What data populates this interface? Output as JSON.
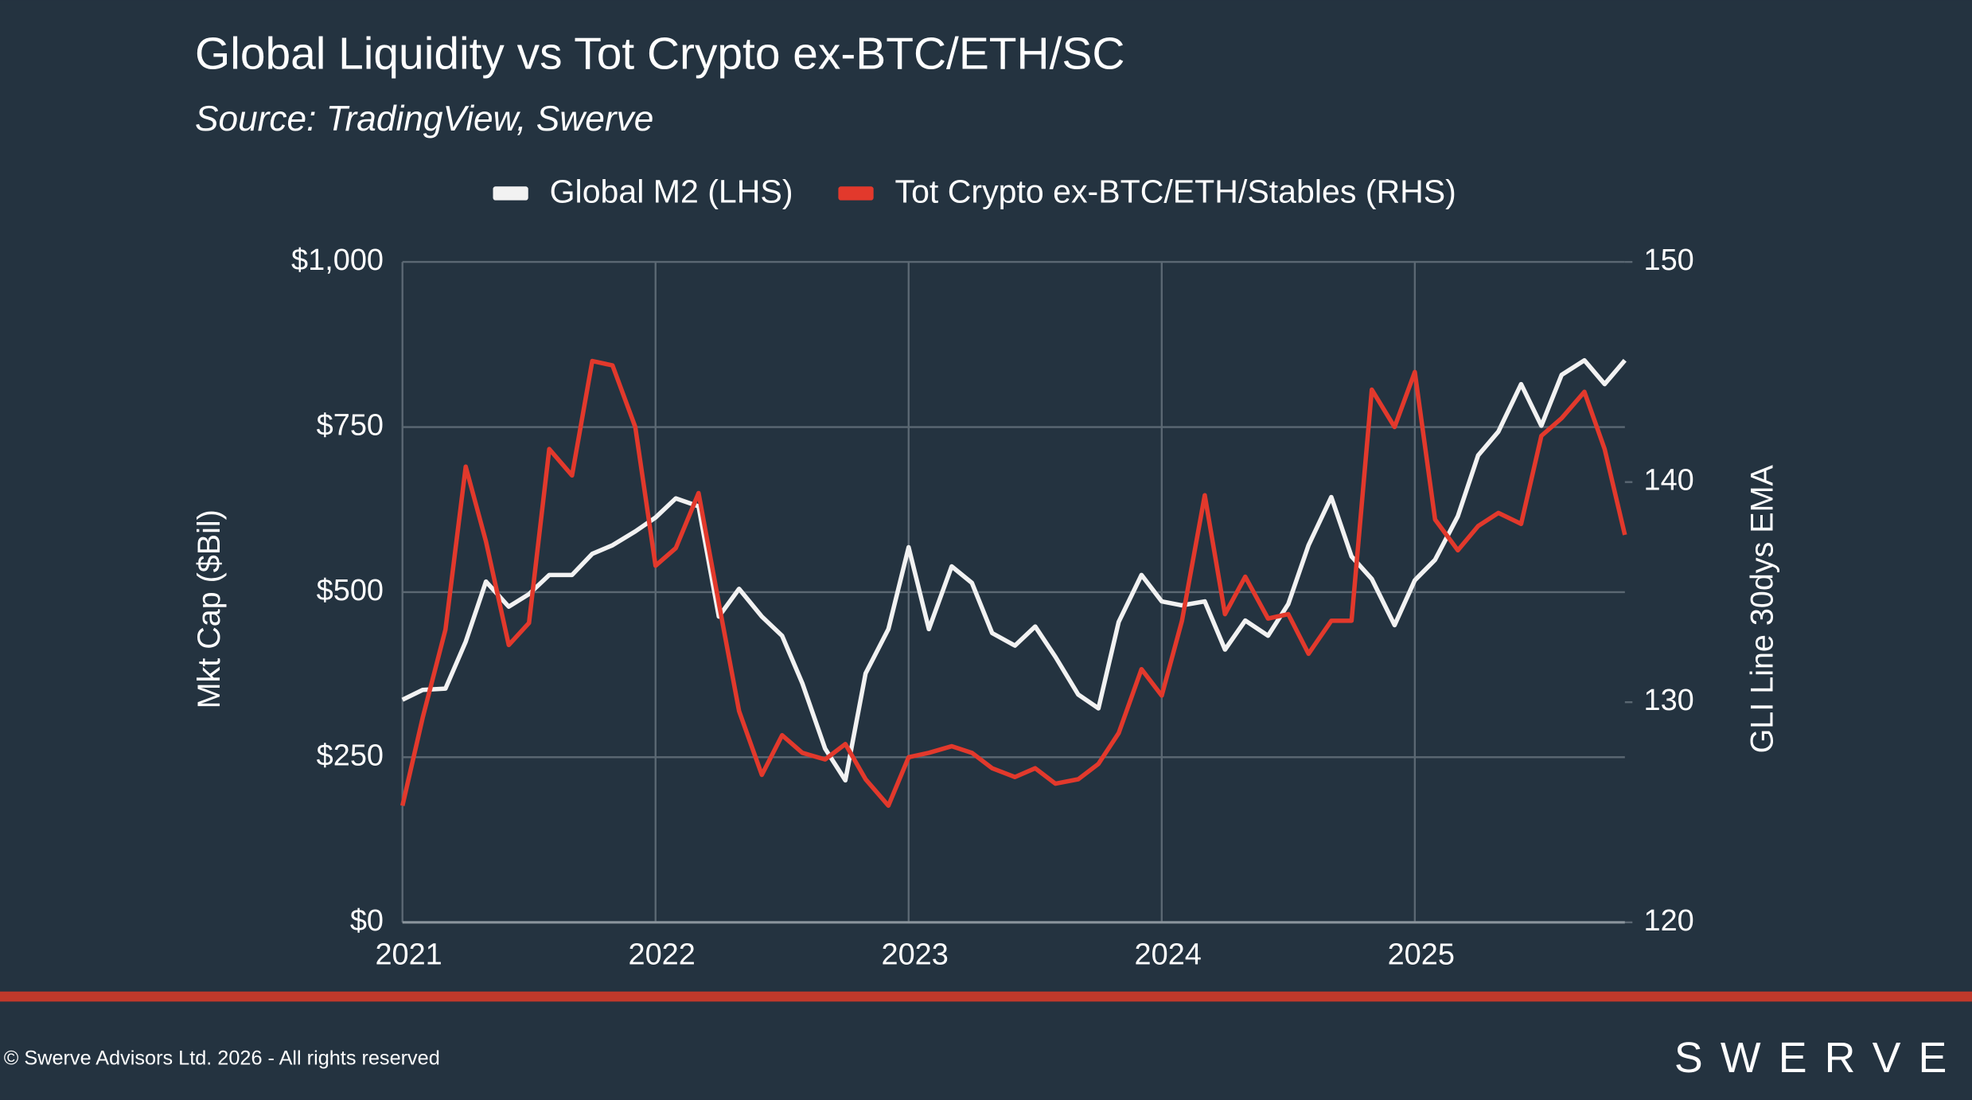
{
  "chart_data": {
    "type": "line",
    "title": "Global Liquidity vs Tot Crypto ex-BTC/ETH/SC",
    "subtitle": "Source: TradingView, Swerve",
    "ylabel": "Mkt Cap ($Bil)",
    "y2label": "GLI Line 30dys EMA",
    "x": [
      2021,
      2021.08,
      2021.17,
      2021.25,
      2021.33,
      2021.42,
      2021.5,
      2021.58,
      2021.67,
      2021.75,
      2021.83,
      2021.92,
      2022,
      2022.08,
      2022.17,
      2022.25,
      2022.33,
      2022.42,
      2022.5,
      2022.58,
      2022.67,
      2022.75,
      2022.83,
      2022.92,
      2023,
      2023.08,
      2023.17,
      2023.25,
      2023.33,
      2023.42,
      2023.5,
      2023.58,
      2023.67,
      2023.75,
      2023.83,
      2023.92,
      2024,
      2024.08,
      2024.17,
      2024.25,
      2024.33,
      2024.42,
      2024.5,
      2024.58,
      2024.67,
      2024.75,
      2024.83,
      2024.92,
      2025,
      2025.08,
      2025.17,
      2025.25,
      2025.33,
      2025.42,
      2025.5,
      2025.58,
      2025.67,
      2025.75,
      2025.83
    ],
    "series": [
      {
        "name": "Global M2 (LHS)",
        "color": "#f2f2f2",
        "values": [
          337,
          352,
          354,
          425,
          516,
          478,
          497,
          526,
          526,
          558,
          571,
          592,
          613,
          642,
          630,
          463,
          505,
          463,
          434,
          362,
          263,
          215,
          377,
          444,
          568,
          444,
          539,
          514,
          438,
          419,
          448,
          402,
          345,
          324,
          455,
          526,
          486,
          480,
          486,
          413,
          457,
          434,
          482,
          571,
          644,
          554,
          520,
          450,
          518,
          549,
          615,
          707,
          743,
          815,
          752,
          829,
          851,
          815,
          851
        ]
      },
      {
        "name": "Tot Crypto ex-BTC/ETH/Stables (RHS)",
        "color": "#e2392c",
        "axis": "y2",
        "values": [
          125.3,
          129.3,
          133.3,
          140.7,
          137.3,
          132.6,
          133.6,
          141.5,
          140.3,
          145.5,
          145.3,
          142.5,
          136.2,
          137.0,
          139.5,
          134.5,
          129.6,
          126.7,
          128.5,
          127.7,
          127.4,
          128.1,
          126.5,
          125.3,
          127.5,
          127.7,
          128.0,
          127.7,
          127.0,
          126.6,
          127.0,
          126.3,
          126.5,
          127.2,
          128.6,
          131.5,
          130.3,
          133.7,
          139.4,
          134.0,
          135.7,
          133.8,
          134.0,
          132.2,
          133.7,
          133.7,
          144.2,
          142.5,
          145.0,
          138.3,
          136.9,
          138.0,
          138.6,
          138.1,
          142.1,
          142.9,
          144.1,
          141.5,
          137.6
        ]
      }
    ],
    "xlim": [
      2021,
      2025.83
    ],
    "xticks": [
      2021,
      2022,
      2023,
      2024,
      2025
    ],
    "ylim": [
      0,
      1000
    ],
    "yticks": [
      {
        "value": 0,
        "label": "$0"
      },
      {
        "value": 250,
        "label": "$250"
      },
      {
        "value": 500,
        "label": "$500"
      },
      {
        "value": 750,
        "label": "$750"
      },
      {
        "value": 1000,
        "label": "$1,000"
      }
    ],
    "y2lim": [
      120,
      150
    ],
    "y2ticks": [
      120,
      130,
      140,
      150
    ],
    "grid": true,
    "legend": "top"
  },
  "footer": {
    "copyright": "© Swerve Advisors Ltd. 2026 - All rights reserved",
    "logo": "SWERVE"
  }
}
